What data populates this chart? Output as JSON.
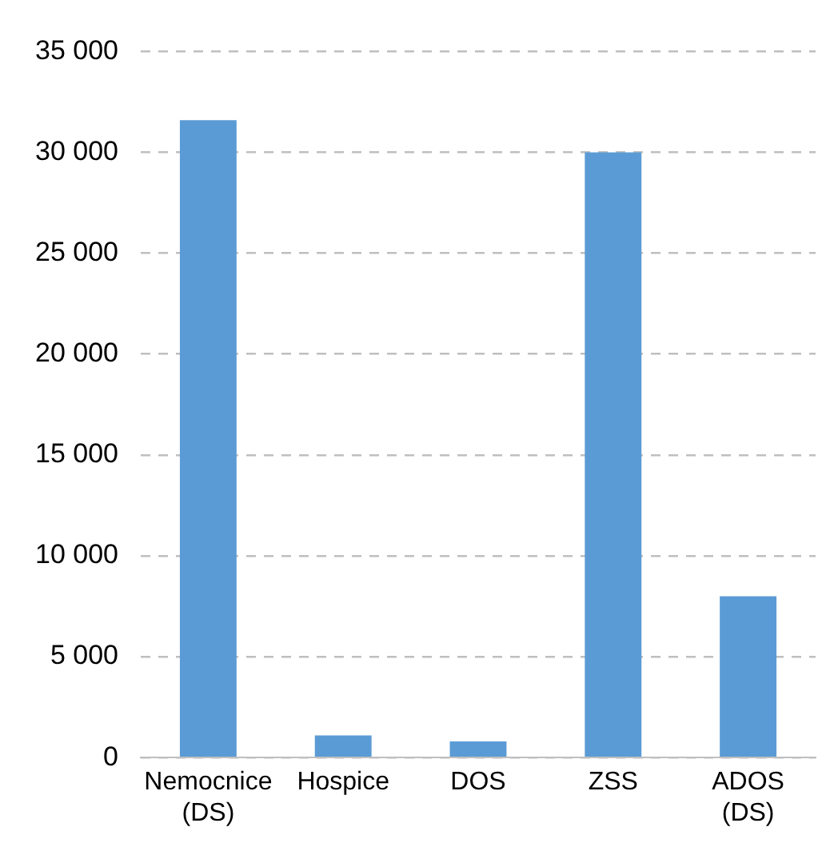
{
  "chart_data": {
    "type": "bar",
    "categories": [
      "Nemocnice (DS)",
      "Hospice",
      "DOS",
      "ZSS",
      "ADOS (DS)"
    ],
    "values": [
      31600,
      1100,
      800,
      30000,
      8000
    ],
    "color": "#5b9bd5",
    "ylim": [
      0,
      35000
    ],
    "yticks": [
      {
        "value": 0,
        "label": "0"
      },
      {
        "value": 5000,
        "label": "5 000"
      },
      {
        "value": 10000,
        "label": "10 000"
      },
      {
        "value": 15000,
        "label": "15 000"
      },
      {
        "value": 20000,
        "label": "20 000"
      },
      {
        "value": 25000,
        "label": "25 000"
      },
      {
        "value": 30000,
        "label": "30 000"
      },
      {
        "value": 35000,
        "label": "35 000"
      }
    ],
    "grid": "y",
    "legend": false
  }
}
